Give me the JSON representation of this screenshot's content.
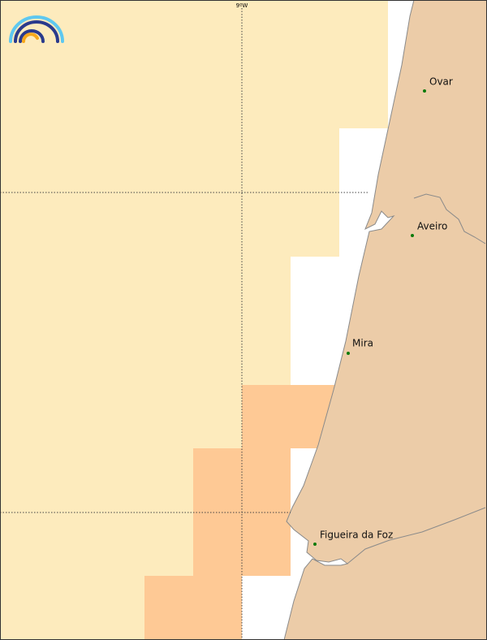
{
  "graticule": {
    "label": "9ºW"
  },
  "places": [
    {
      "name": "Ovar"
    },
    {
      "name": "Aveiro"
    },
    {
      "name": "Mira"
    },
    {
      "name": "Figueira da Foz"
    }
  ]
}
